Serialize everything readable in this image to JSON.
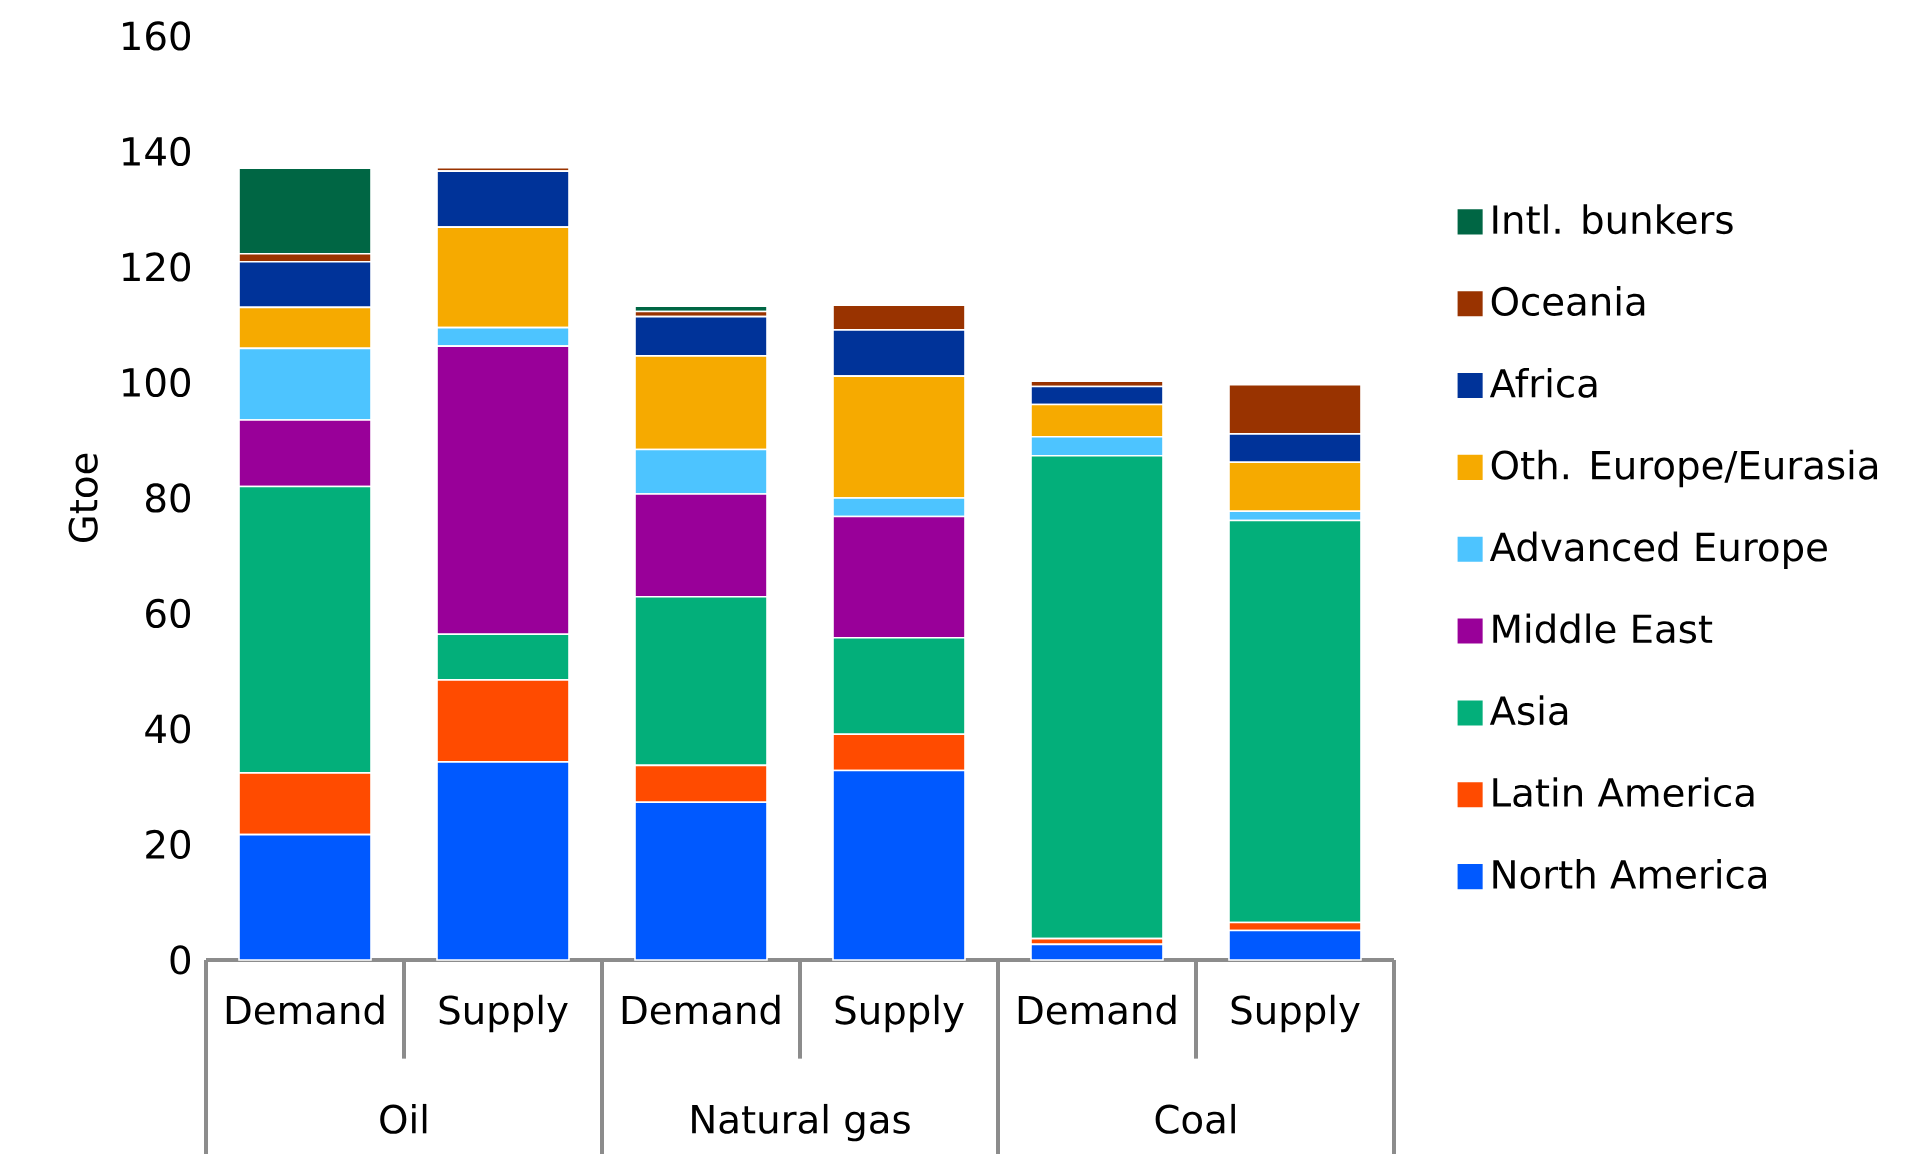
{
  "chart_data": {
    "type": "bar",
    "stacked": true,
    "ylabel": "Gtoe",
    "categories": [
      "Demand",
      "Supply",
      "Demand",
      "Supply",
      "Demand",
      "Supply"
    ],
    "annotations": [
      "Oil",
      "Natural gas",
      "Coal"
    ],
    "ylim": [
      0,
      160
    ],
    "yticks": [
      0,
      20,
      40,
      60,
      80,
      100,
      120,
      140,
      160
    ],
    "legend": "right",
    "series": [
      {
        "name": "North America",
        "color": "#0059ff",
        "values": [
          21.7,
          34.3,
          27.3,
          32.8,
          2.7,
          5.1
        ]
      },
      {
        "name": "Latin America",
        "color": "#ff4b00",
        "values": [
          10.7,
          14.2,
          6.4,
          6.3,
          1.0,
          1.4
        ]
      },
      {
        "name": "Asia",
        "color": "#03af7a",
        "values": [
          49.6,
          7.9,
          29.2,
          16.7,
          83.6,
          69.6
        ]
      },
      {
        "name": "Middle East",
        "color": "#990099",
        "values": [
          11.5,
          49.9,
          17.8,
          21.0,
          null,
          null
        ]
      },
      {
        "name": "Advanced Europe",
        "color": "#4dc4ff",
        "values": [
          12.4,
          3.2,
          7.7,
          3.2,
          3.3,
          1.6
        ]
      },
      {
        "name": "Oth. Europe/Eurasia",
        "color": "#f6aa00",
        "values": [
          7.1,
          17.4,
          16.2,
          21.1,
          5.6,
          8.5
        ]
      },
      {
        "name": "Africa",
        "color": "#003399",
        "values": [
          7.9,
          9.7,
          6.8,
          8.0,
          3.1,
          4.9
        ]
      },
      {
        "name": "Oceania",
        "color": "#993300",
        "values": [
          1.4,
          0.6,
          0.9,
          4.3,
          0.9,
          8.5
        ]
      },
      {
        "name": "Intl. bunkers",
        "color": "#006644",
        "values": [
          14.8,
          null,
          0.9,
          null,
          null,
          null
        ]
      }
    ]
  }
}
